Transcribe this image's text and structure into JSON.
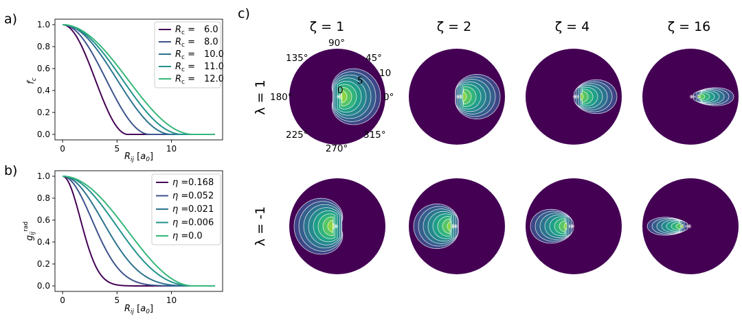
{
  "panels": {
    "a": "a)",
    "b": "b)",
    "c": "c)"
  },
  "chart_data": [
    {
      "type": "line",
      "panel": "a)",
      "ylabel": "f_c",
      "ylabel_main": "f",
      "ylabel_sub": "c",
      "xlabel": "R_ij [a_0]",
      "xlabel_main": "R",
      "xlabel_sub": "ij",
      "xlabel_unit_open": " [",
      "xlabel_unit_main": "a",
      "xlabel_unit_sub": "0",
      "xlabel_unit_close": "]",
      "xlim": [
        -0.7,
        14.7
      ],
      "ylim": [
        -0.05,
        1.05
      ],
      "xticks": [
        "0",
        "5",
        "10"
      ],
      "yticks": [
        "0.0",
        "0.2",
        "0.4",
        "0.6",
        "0.8",
        "1.0"
      ],
      "legend_position": "top-right",
      "grid": false,
      "series": [
        {
          "name": "R_c = 6.0",
          "param": "6.0",
          "color": "#440154",
          "rc": 6.0
        },
        {
          "name": "R_c = 8.0",
          "param": "8.0",
          "color": "#3b528b",
          "rc": 8.0
        },
        {
          "name": "R_c = 10.0",
          "param": "10.0",
          "color": "#2c728e",
          "rc": 10.0
        },
        {
          "name": "R_c = 11.0",
          "param": "11.0",
          "color": "#21918c",
          "rc": 11.0
        },
        {
          "name": "R_c = 12.0",
          "param": "12.0",
          "color": "#35b779",
          "rc": 12.0
        }
      ]
    },
    {
      "type": "line",
      "panel": "b)",
      "ylabel": "g_ij^rad",
      "ylabel_main": "g",
      "ylabel_sub": "ij",
      "ylabel_sup": "rad",
      "xlabel": "R_ij [a_0]",
      "xlabel_main": "R",
      "xlabel_sub": "ij",
      "xlabel_unit_open": " [",
      "xlabel_unit_main": "a",
      "xlabel_unit_sub": "0",
      "xlabel_unit_close": "]",
      "xlim": [
        -0.7,
        14.7
      ],
      "ylim": [
        -0.05,
        1.05
      ],
      "xticks": [
        "0",
        "5",
        "10"
      ],
      "yticks": [
        "0.0",
        "0.2",
        "0.4",
        "0.6",
        "0.8",
        "1.0"
      ],
      "legend_position": "top-right",
      "grid": false,
      "cutoff_rc": 12.0,
      "series": [
        {
          "name": "η = 0.168",
          "param": "0.168",
          "color": "#440154",
          "eta": 0.168
        },
        {
          "name": "η = 0.052",
          "param": "0.052",
          "color": "#3b528b",
          "eta": 0.052
        },
        {
          "name": "η = 0.021",
          "param": "0.021",
          "color": "#2c728e",
          "eta": 0.021
        },
        {
          "name": "η = 0.006",
          "param": "0.006",
          "color": "#21918c",
          "eta": 0.006
        },
        {
          "name": "η = 0.0",
          "param": "0.0",
          "color": "#35b779",
          "eta": 0.0
        }
      ]
    },
    {
      "type": "heatmap",
      "panel": "c)",
      "projection": "polar",
      "colormap": "viridis",
      "contour_color": "#ffffff",
      "zeta_values": [
        1,
        2,
        4,
        16
      ],
      "lambda_values": [
        1,
        -1
      ],
      "column_titles": [
        "ζ  = 1",
        "ζ = 2",
        "ζ = 4",
        "ζ = 16"
      ],
      "row_titles": [
        "λ = 1",
        "λ = -1"
      ],
      "angle_labels": [
        "0°",
        "45°",
        "90°",
        "135°",
        "180°",
        "225°",
        "270°",
        "315°"
      ],
      "radial_labels": [
        "0",
        "5",
        "10"
      ]
    }
  ]
}
